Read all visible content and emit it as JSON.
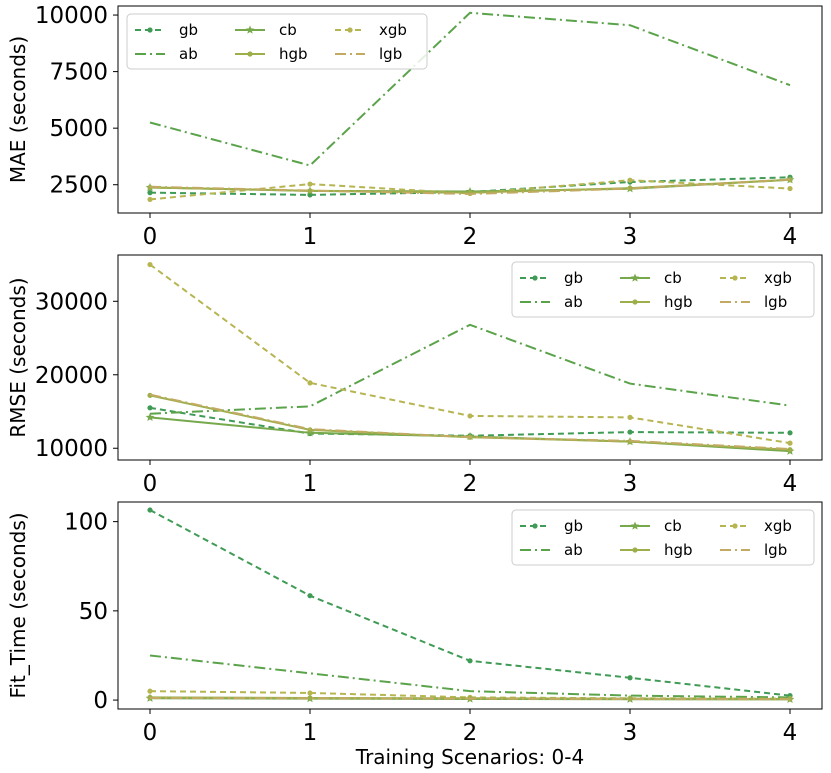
{
  "chart_data": [
    {
      "type": "line",
      "ylabel": "MAE (seconds)",
      "xlabel": "",
      "x": [
        0,
        1,
        2,
        3,
        4
      ],
      "xticks": [
        "0",
        "1",
        "2",
        "3",
        "4"
      ],
      "yticks": [
        2500,
        5000,
        7500,
        10000
      ],
      "ytick_labels": [
        "2500",
        "5000",
        "7500",
        "10000"
      ],
      "ylim": [
        1250,
        10400
      ],
      "legend_loc": "upper-left",
      "series": [
        {
          "name": "gb",
          "values": [
            2150,
            2050,
            2180,
            2620,
            2830
          ]
        },
        {
          "name": "ab",
          "values": [
            5250,
            3350,
            10100,
            9550,
            6900
          ]
        },
        {
          "name": "cb",
          "values": [
            2380,
            2230,
            2200,
            2320,
            2720
          ]
        },
        {
          "name": "xgb",
          "values": [
            1850,
            2530,
            2110,
            2700,
            2330
          ]
        },
        {
          "name": "hgb",
          "values": [
            2380,
            2230,
            2150,
            2350,
            2720
          ]
        },
        {
          "name": "lgb",
          "values": [
            2410,
            2240,
            2090,
            2330,
            2730
          ]
        }
      ]
    },
    {
      "type": "line",
      "ylabel": "RMSE (seconds)",
      "xlabel": "",
      "x": [
        0,
        1,
        2,
        3,
        4
      ],
      "xticks": [
        "0",
        "1",
        "2",
        "3",
        "4"
      ],
      "yticks": [
        10000,
        20000,
        30000
      ],
      "ytick_labels": [
        "10000",
        "20000",
        "30000"
      ],
      "ylim": [
        8400,
        36300
      ],
      "legend_loc": "upper-right",
      "series": [
        {
          "name": "gb",
          "values": [
            15500,
            12000,
            11700,
            12200,
            12100
          ]
        },
        {
          "name": "ab",
          "values": [
            14700,
            15700,
            26800,
            18800,
            15800
          ]
        },
        {
          "name": "cb",
          "values": [
            14200,
            12100,
            11600,
            10900,
            9600
          ]
        },
        {
          "name": "xgb",
          "values": [
            35000,
            18900,
            14400,
            14200,
            10700
          ]
        },
        {
          "name": "hgb",
          "values": [
            17200,
            12500,
            11500,
            10900,
            9800
          ]
        },
        {
          "name": "lgb",
          "values": [
            17300,
            12600,
            11500,
            11000,
            9900
          ]
        }
      ]
    },
    {
      "type": "line",
      "ylabel": "Fit_Time (seconds)",
      "xlabel": "Training Scenarios: 0-4",
      "x": [
        0,
        1,
        2,
        3,
        4
      ],
      "xticks": [
        "0",
        "1",
        "2",
        "3",
        "4"
      ],
      "yticks": [
        0,
        50,
        100
      ],
      "ytick_labels": [
        "0",
        "50",
        "100"
      ],
      "ylim": [
        -5,
        111
      ],
      "legend_loc": "upper-right",
      "series": [
        {
          "name": "gb",
          "values": [
            106.5,
            58.5,
            22,
            12.5,
            2.5
          ]
        },
        {
          "name": "ab",
          "values": [
            25,
            15,
            5,
            2.5,
            1.5
          ]
        },
        {
          "name": "cb",
          "values": [
            1,
            0.8,
            0.6,
            0.5,
            0.4
          ]
        },
        {
          "name": "xgb",
          "values": [
            5,
            4,
            1.5,
            1,
            0.8
          ]
        },
        {
          "name": "hgb",
          "values": [
            1.5,
            1.2,
            1.0,
            0.8,
            0.6
          ]
        },
        {
          "name": "lgb",
          "values": [
            1.2,
            1.0,
            0.8,
            0.6,
            0.5
          ]
        }
      ]
    }
  ],
  "series_styles": {
    "gb": {
      "color": "#3f9b55",
      "dash": "6,4",
      "marker": "circle"
    },
    "ab": {
      "color": "#5aa34a",
      "dash": "11,4,2,4",
      "marker": "none"
    },
    "cb": {
      "color": "#76a84c",
      "dash": "",
      "marker": "star"
    },
    "xgb": {
      "color": "#b6b552",
      "dash": "6,4",
      "marker": "circle"
    },
    "hgb": {
      "color": "#9caf4b",
      "dash": "",
      "marker": "circle"
    },
    "lgb": {
      "color": "#c3aa63",
      "dash": "11,4,2,4",
      "marker": "none"
    }
  },
  "legend_order": [
    "gb",
    "cb",
    "xgb",
    "ab",
    "hgb",
    "lgb"
  ]
}
